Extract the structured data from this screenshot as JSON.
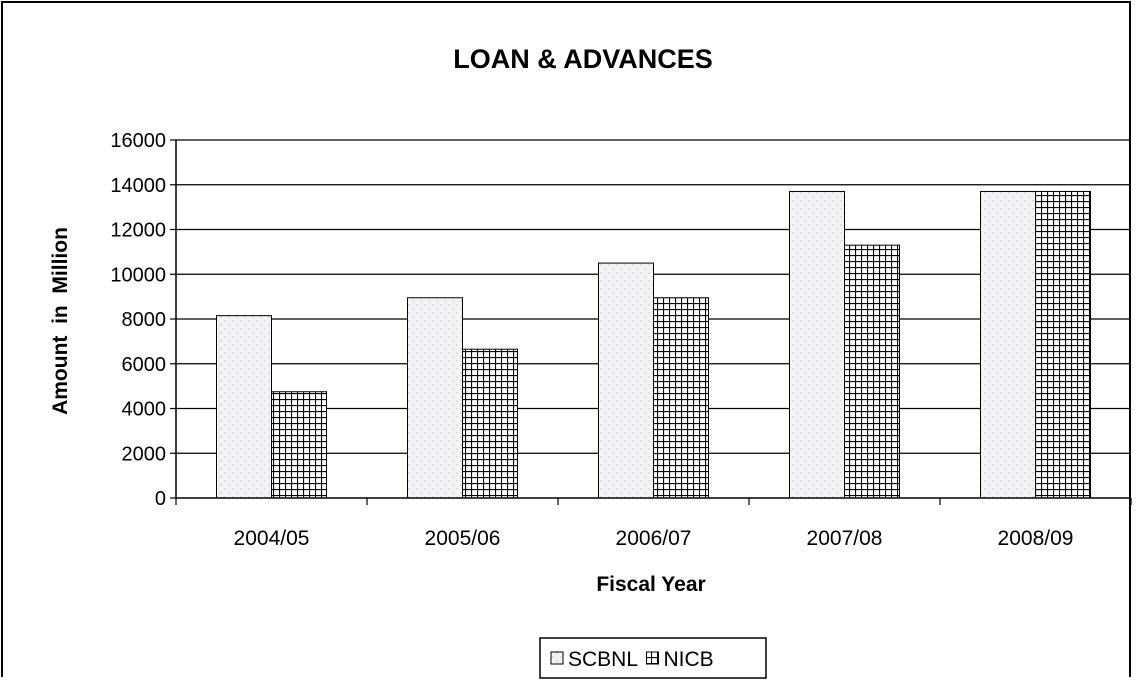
{
  "chart_data": {
    "type": "bar",
    "title": "LOAN & ADVANCES",
    "xlabel": "Fiscal Year",
    "ylabel": "Amount  in  Million",
    "categories": [
      "2004/05",
      "2005/06",
      "2006/07",
      "2007/08",
      "2008/09"
    ],
    "series": [
      {
        "name": "SCBNL",
        "values": [
          8150,
          8950,
          10500,
          13700,
          13700
        ],
        "pattern": "dotted",
        "color": "#f2f2f2"
      },
      {
        "name": "NICB",
        "values": [
          4750,
          6650,
          8950,
          11300,
          13700
        ],
        "pattern": "grid",
        "color": "#000000"
      }
    ],
    "ylim": [
      0,
      16000
    ],
    "yticks": [
      "0",
      "2000",
      "4000",
      "6000",
      "8000",
      "10000",
      "12000",
      "14000",
      "16000"
    ],
    "grid": true,
    "legend_position": "bottom"
  }
}
